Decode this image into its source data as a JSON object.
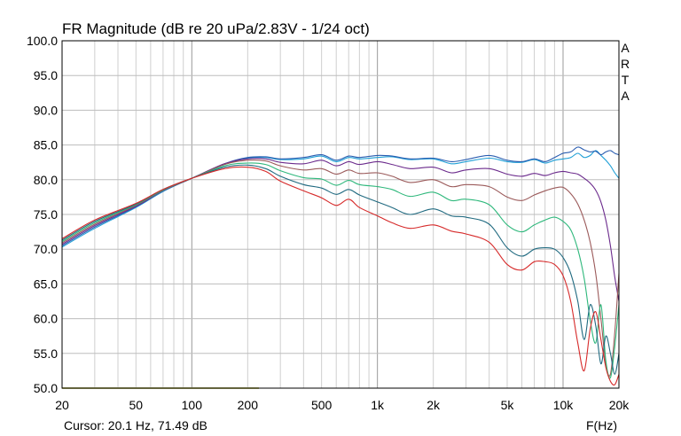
{
  "chart_data": {
    "type": "line",
    "title": "FR Magnitude (dB re 20 uPa/2.83V - 1/24 oct)",
    "xlabel": "F(Hz)",
    "ylabel": "",
    "x_scale": "log",
    "xlim": [
      20,
      20000
    ],
    "ylim": [
      50,
      100
    ],
    "grid": true,
    "x_ticks": [
      "20",
      "50",
      "100",
      "200",
      "500",
      "1k",
      "2k",
      "5k",
      "10k",
      "20k"
    ],
    "x_tick_values": [
      20,
      50,
      100,
      200,
      500,
      1000,
      2000,
      5000,
      10000,
      20000
    ],
    "y_ticks": [
      "100.0",
      "95.0",
      "90.0",
      "85.0",
      "80.0",
      "75.0",
      "70.0",
      "65.0",
      "60.0",
      "55.0",
      "50.0"
    ],
    "y_tick_values": [
      100,
      95,
      90,
      85,
      80,
      75,
      70,
      65,
      60,
      55,
      50
    ],
    "cursor_text": "Cursor: 20.1 Hz, 71.49 dB",
    "brand_letters": [
      "A",
      "R",
      "T",
      "A"
    ],
    "series": [
      {
        "color": "#1f9fd6",
        "points": [
          [
            20,
            70.3
          ],
          [
            30,
            73.0
          ],
          [
            50,
            76.0
          ],
          [
            70,
            78.3
          ],
          [
            100,
            80.2
          ],
          [
            150,
            82.2
          ],
          [
            200,
            83.1
          ],
          [
            250,
            83.2
          ],
          [
            300,
            82.9
          ],
          [
            400,
            83.0
          ],
          [
            500,
            83.4
          ],
          [
            600,
            82.6
          ],
          [
            700,
            83.2
          ],
          [
            800,
            83.0
          ],
          [
            1000,
            83.2
          ],
          [
            1200,
            83.3
          ],
          [
            1500,
            82.9
          ],
          [
            2000,
            83.0
          ],
          [
            2500,
            82.3
          ],
          [
            3000,
            82.6
          ],
          [
            4000,
            83.1
          ],
          [
            5000,
            82.6
          ],
          [
            6000,
            82.5
          ],
          [
            7000,
            82.9
          ],
          [
            8000,
            82.4
          ],
          [
            9000,
            82.8
          ],
          [
            10000,
            83.0
          ],
          [
            11000,
            83.2
          ],
          [
            12000,
            83.8
          ],
          [
            13000,
            83.2
          ],
          [
            14000,
            83.5
          ],
          [
            15000,
            84.2
          ],
          [
            16000,
            83.5
          ],
          [
            17000,
            82.8
          ],
          [
            18000,
            82.0
          ],
          [
            19000,
            81.0
          ],
          [
            20000,
            80.2
          ]
        ]
      },
      {
        "color": "#2a5db0",
        "points": [
          [
            20,
            70.5
          ],
          [
            30,
            73.2
          ],
          [
            50,
            76.1
          ],
          [
            70,
            78.4
          ],
          [
            100,
            80.2
          ],
          [
            150,
            82.3
          ],
          [
            200,
            83.2
          ],
          [
            250,
            83.3
          ],
          [
            300,
            83.0
          ],
          [
            400,
            83.2
          ],
          [
            500,
            83.6
          ],
          [
            600,
            82.8
          ],
          [
            700,
            83.4
          ],
          [
            800,
            83.2
          ],
          [
            1000,
            83.5
          ],
          [
            1200,
            83.4
          ],
          [
            1500,
            83.0
          ],
          [
            2000,
            83.1
          ],
          [
            2500,
            82.6
          ],
          [
            3000,
            82.9
          ],
          [
            4000,
            83.5
          ],
          [
            5000,
            82.8
          ],
          [
            6000,
            82.6
          ],
          [
            7000,
            83.0
          ],
          [
            8000,
            82.6
          ],
          [
            9000,
            83.2
          ],
          [
            10000,
            83.8
          ],
          [
            11000,
            84.0
          ],
          [
            12000,
            84.7
          ],
          [
            13000,
            84.3
          ],
          [
            14000,
            84.0
          ],
          [
            15000,
            84.1
          ],
          [
            16000,
            83.6
          ],
          [
            17000,
            84.0
          ],
          [
            18000,
            84.2
          ],
          [
            19000,
            83.8
          ],
          [
            20000,
            83.6
          ]
        ]
      },
      {
        "color": "#6b2a8c",
        "points": [
          [
            20,
            70.7
          ],
          [
            30,
            73.4
          ],
          [
            50,
            76.2
          ],
          [
            70,
            78.4
          ],
          [
            100,
            80.2
          ],
          [
            150,
            82.3
          ],
          [
            200,
            83.0
          ],
          [
            250,
            83.0
          ],
          [
            300,
            82.5
          ],
          [
            400,
            82.3
          ],
          [
            500,
            82.8
          ],
          [
            600,
            82.0
          ],
          [
            700,
            82.6
          ],
          [
            800,
            82.2
          ],
          [
            1000,
            82.6
          ],
          [
            1200,
            82.2
          ],
          [
            1500,
            81.6
          ],
          [
            2000,
            81.8
          ],
          [
            2500,
            81.0
          ],
          [
            3000,
            81.4
          ],
          [
            4000,
            81.6
          ],
          [
            5000,
            80.8
          ],
          [
            6000,
            80.5
          ],
          [
            7000,
            80.9
          ],
          [
            8000,
            80.6
          ],
          [
            9000,
            81.0
          ],
          [
            10000,
            81.2
          ],
          [
            11000,
            81.0
          ],
          [
            12000,
            80.8
          ],
          [
            13000,
            80.2
          ],
          [
            14000,
            79.5
          ],
          [
            15000,
            78.5
          ],
          [
            16000,
            76.8
          ],
          [
            17000,
            74.2
          ],
          [
            18000,
            70.5
          ],
          [
            19000,
            66.0
          ],
          [
            20000,
            62.5
          ]
        ]
      },
      {
        "color": "#9b5a5a",
        "points": [
          [
            20,
            70.9
          ],
          [
            30,
            73.6
          ],
          [
            50,
            76.3
          ],
          [
            70,
            78.5
          ],
          [
            100,
            80.2
          ],
          [
            150,
            82.2
          ],
          [
            200,
            82.8
          ],
          [
            250,
            82.7
          ],
          [
            300,
            82.0
          ],
          [
            400,
            81.4
          ],
          [
            500,
            81.6
          ],
          [
            600,
            80.8
          ],
          [
            700,
            81.4
          ],
          [
            800,
            80.9
          ],
          [
            1000,
            81.0
          ],
          [
            1200,
            80.5
          ],
          [
            1500,
            79.6
          ],
          [
            2000,
            80.0
          ],
          [
            2500,
            79.0
          ],
          [
            3000,
            79.3
          ],
          [
            4000,
            79.0
          ],
          [
            5000,
            77.5
          ],
          [
            6000,
            77.0
          ],
          [
            7000,
            77.8
          ],
          [
            8000,
            78.4
          ],
          [
            9000,
            78.8
          ],
          [
            10000,
            78.9
          ],
          [
            11000,
            78.0
          ],
          [
            12000,
            76.5
          ],
          [
            13000,
            74.2
          ],
          [
            14000,
            71.0
          ],
          [
            15000,
            66.5
          ],
          [
            16000,
            60.0
          ],
          [
            17000,
            53.5
          ],
          [
            18000,
            52.0
          ],
          [
            19000,
            58.0
          ],
          [
            20000,
            66.5
          ]
        ]
      },
      {
        "color": "#2fb87c",
        "points": [
          [
            20,
            71.1
          ],
          [
            30,
            73.8
          ],
          [
            50,
            76.4
          ],
          [
            70,
            78.5
          ],
          [
            100,
            80.2
          ],
          [
            150,
            82.0
          ],
          [
            200,
            82.4
          ],
          [
            250,
            82.2
          ],
          [
            300,
            81.3
          ],
          [
            400,
            80.3
          ],
          [
            500,
            80.1
          ],
          [
            600,
            79.2
          ],
          [
            700,
            79.9
          ],
          [
            800,
            79.3
          ],
          [
            1000,
            79.0
          ],
          [
            1200,
            78.6
          ],
          [
            1500,
            77.6
          ],
          [
            2000,
            78.2
          ],
          [
            2500,
            77.0
          ],
          [
            3000,
            77.2
          ],
          [
            4000,
            76.4
          ],
          [
            5000,
            73.5
          ],
          [
            6000,
            72.5
          ],
          [
            7000,
            73.5
          ],
          [
            8000,
            74.2
          ],
          [
            9000,
            74.6
          ],
          [
            10000,
            74.0
          ],
          [
            11000,
            72.8
          ],
          [
            12000,
            70.0
          ],
          [
            13000,
            65.8
          ],
          [
            14000,
            59.8
          ],
          [
            15000,
            56.5
          ],
          [
            16000,
            62.0
          ],
          [
            17000,
            54.0
          ],
          [
            18000,
            51.5
          ],
          [
            19000,
            56.0
          ],
          [
            20000,
            62.0
          ]
        ]
      },
      {
        "color": "#206a80",
        "points": [
          [
            20,
            71.3
          ],
          [
            30,
            74.0
          ],
          [
            50,
            76.5
          ],
          [
            70,
            78.6
          ],
          [
            100,
            80.2
          ],
          [
            150,
            81.8
          ],
          [
            200,
            82.1
          ],
          [
            250,
            81.6
          ],
          [
            300,
            80.5
          ],
          [
            400,
            79.3
          ],
          [
            500,
            78.8
          ],
          [
            600,
            77.9
          ],
          [
            700,
            78.6
          ],
          [
            800,
            77.8
          ],
          [
            1000,
            76.8
          ],
          [
            1200,
            76.0
          ],
          [
            1500,
            75.0
          ],
          [
            2000,
            75.8
          ],
          [
            2500,
            74.8
          ],
          [
            3000,
            74.6
          ],
          [
            4000,
            73.6
          ],
          [
            5000,
            70.2
          ],
          [
            6000,
            69.0
          ],
          [
            7000,
            70.0
          ],
          [
            8000,
            70.2
          ],
          [
            9000,
            70.0
          ],
          [
            10000,
            68.8
          ],
          [
            11000,
            66.5
          ],
          [
            12000,
            62.5
          ],
          [
            13000,
            57.0
          ],
          [
            14000,
            62.0
          ],
          [
            15000,
            59.0
          ],
          [
            16000,
            53.5
          ],
          [
            17000,
            57.5
          ],
          [
            18000,
            55.0
          ],
          [
            19000,
            52.0
          ],
          [
            20000,
            55.0
          ]
        ]
      },
      {
        "color": "#d62a2a",
        "points": [
          [
            20,
            71.5
          ],
          [
            30,
            74.2
          ],
          [
            50,
            76.6
          ],
          [
            70,
            78.6
          ],
          [
            100,
            80.2
          ],
          [
            150,
            81.6
          ],
          [
            200,
            81.8
          ],
          [
            250,
            81.2
          ],
          [
            300,
            79.8
          ],
          [
            400,
            78.4
          ],
          [
            500,
            77.4
          ],
          [
            600,
            76.3
          ],
          [
            700,
            77.2
          ],
          [
            800,
            76.0
          ],
          [
            1000,
            74.8
          ],
          [
            1200,
            73.8
          ],
          [
            1500,
            73.0
          ],
          [
            2000,
            73.5
          ],
          [
            2500,
            72.6
          ],
          [
            3000,
            72.2
          ],
          [
            4000,
            71.0
          ],
          [
            5000,
            67.8
          ],
          [
            6000,
            67.0
          ],
          [
            7000,
            68.2
          ],
          [
            8000,
            68.2
          ],
          [
            9000,
            67.8
          ],
          [
            10000,
            66.2
          ],
          [
            11000,
            62.5
          ],
          [
            12000,
            56.5
          ],
          [
            13000,
            52.5
          ],
          [
            14000,
            58.5
          ],
          [
            15000,
            61.0
          ],
          [
            16000,
            57.0
          ],
          [
            17000,
            53.0
          ],
          [
            18000,
            51.0
          ],
          [
            19000,
            50.5
          ],
          [
            20000,
            52.0
          ]
        ]
      },
      {
        "color": "#c8c87a",
        "points": [
          [
            20,
            50.0
          ],
          [
            230,
            50.0
          ]
        ]
      }
    ]
  }
}
